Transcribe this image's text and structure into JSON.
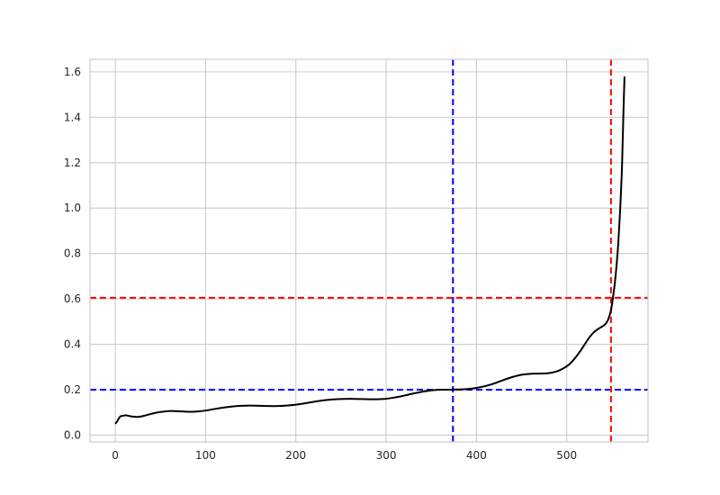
{
  "chart_data": {
    "type": "line",
    "title": "",
    "xlabel": "",
    "ylabel": "",
    "xlim": [
      -28,
      590
    ],
    "ylim": [
      -0.03,
      1.655
    ],
    "xticks": [
      0,
      100,
      200,
      300,
      400,
      500
    ],
    "yticks": [
      0.0,
      0.2,
      0.4,
      0.6,
      0.8,
      1.0,
      1.2,
      1.4,
      1.6
    ],
    "xtick_labels": [
      "0",
      "100",
      "200",
      "300",
      "400",
      "500"
    ],
    "ytick_labels": [
      "0.0",
      "0.2",
      "0.4",
      "0.6",
      "0.8",
      "1.0",
      "1.2",
      "1.4",
      "1.6"
    ],
    "grid": true,
    "series": [
      {
        "color": "#000000",
        "points": [
          [
            0,
            0.05
          ],
          [
            2,
            0.06
          ],
          [
            5,
            0.08
          ],
          [
            8,
            0.085
          ],
          [
            12,
            0.087
          ],
          [
            18,
            0.082
          ],
          [
            25,
            0.08
          ],
          [
            32,
            0.085
          ],
          [
            40,
            0.094
          ],
          [
            50,
            0.102
          ],
          [
            60,
            0.106
          ],
          [
            70,
            0.105
          ],
          [
            80,
            0.103
          ],
          [
            90,
            0.104
          ],
          [
            100,
            0.108
          ],
          [
            110,
            0.115
          ],
          [
            120,
            0.121
          ],
          [
            130,
            0.126
          ],
          [
            140,
            0.129
          ],
          [
            150,
            0.13
          ],
          [
            160,
            0.129
          ],
          [
            170,
            0.128
          ],
          [
            180,
            0.128
          ],
          [
            190,
            0.13
          ],
          [
            200,
            0.134
          ],
          [
            210,
            0.14
          ],
          [
            220,
            0.147
          ],
          [
            230,
            0.153
          ],
          [
            240,
            0.157
          ],
          [
            250,
            0.159
          ],
          [
            260,
            0.16
          ],
          [
            270,
            0.159
          ],
          [
            280,
            0.158
          ],
          [
            290,
            0.158
          ],
          [
            300,
            0.16
          ],
          [
            310,
            0.166
          ],
          [
            320,
            0.174
          ],
          [
            330,
            0.183
          ],
          [
            340,
            0.191
          ],
          [
            350,
            0.197
          ],
          [
            360,
            0.2
          ],
          [
            370,
            0.2
          ],
          [
            380,
            0.201
          ],
          [
            390,
            0.203
          ],
          [
            400,
            0.208
          ],
          [
            410,
            0.216
          ],
          [
            420,
            0.228
          ],
          [
            430,
            0.243
          ],
          [
            440,
            0.256
          ],
          [
            450,
            0.266
          ],
          [
            460,
            0.27
          ],
          [
            470,
            0.271
          ],
          [
            480,
            0.273
          ],
          [
            490,
            0.282
          ],
          [
            500,
            0.303
          ],
          [
            505,
            0.32
          ],
          [
            510,
            0.343
          ],
          [
            515,
            0.37
          ],
          [
            520,
            0.4
          ],
          [
            525,
            0.43
          ],
          [
            530,
            0.453
          ],
          [
            535,
            0.468
          ],
          [
            540,
            0.48
          ],
          [
            543,
            0.49
          ],
          [
            546,
            0.51
          ],
          [
            549,
            0.55
          ],
          [
            551,
            0.6
          ],
          [
            553,
            0.66
          ],
          [
            555,
            0.74
          ],
          [
            557,
            0.84
          ],
          [
            559,
            0.98
          ],
          [
            561,
            1.16
          ],
          [
            562,
            1.3
          ],
          [
            563,
            1.45
          ],
          [
            564,
            1.58
          ]
        ]
      }
    ],
    "reference_lines": [
      {
        "orientation": "vertical",
        "value": 374,
        "color": "#0000ff",
        "style": "dashed"
      },
      {
        "orientation": "horizontal",
        "value": 0.2,
        "color": "#0000ff",
        "style": "dashed"
      },
      {
        "orientation": "vertical",
        "value": 549,
        "color": "#ff0000",
        "style": "dashed"
      },
      {
        "orientation": "horizontal",
        "value": 0.605,
        "color": "#ff0000",
        "style": "dashed"
      }
    ]
  }
}
